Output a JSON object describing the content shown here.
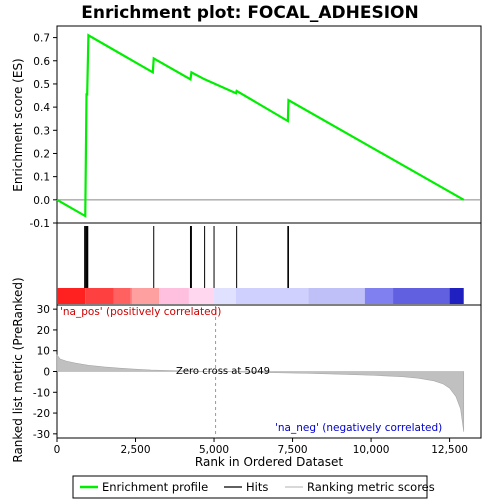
{
  "chart_data": {
    "type": "line",
    "title": "Enrichment plot: FOCAL_ADHESION",
    "xlabel": "Rank in Ordered Dataset",
    "top_panel": {
      "ylabel": "Enrichment score (ES)",
      "ylim": [
        -0.1,
        0.75
      ],
      "yticks": [
        "-0.1",
        "0.0",
        "0.1",
        "0.2",
        "0.3",
        "0.4",
        "0.5",
        "0.6",
        "0.7"
      ],
      "ytick_values": [
        -0.1,
        0.0,
        0.1,
        0.2,
        0.3,
        0.4,
        0.5,
        0.6,
        0.7
      ],
      "series": [
        {
          "name": "Enrichment profile",
          "color": "#00ee00",
          "x": [
            0,
            900,
            920,
            940,
            960,
            1000,
            3050,
            3080,
            4250,
            4280,
            4700,
            5700,
            5720,
            7350,
            7370,
            12950
          ],
          "y": [
            0.0,
            -0.07,
            0.2,
            0.46,
            0.45,
            0.71,
            0.55,
            0.61,
            0.52,
            0.55,
            0.52,
            0.46,
            0.47,
            0.34,
            0.43,
            0.0
          ]
        }
      ]
    },
    "hits": {
      "name": "Hits",
      "x": [
        880,
        910,
        940,
        960,
        980,
        3080,
        4250,
        4280,
        4700,
        5000,
        5720,
        7350,
        7370
      ]
    },
    "bottom_panel": {
      "ylabel": "Ranked list metric (PreRanked)",
      "ylim": [
        -32,
        32
      ],
      "yticks": [
        "30",
        "20",
        "10",
        "0",
        "-10",
        "-20",
        "-30"
      ],
      "ytick_values": [
        30,
        20,
        10,
        0,
        -10,
        -20,
        -30
      ],
      "series_name": "Ranking metric scores",
      "color": "#c0c0c0",
      "x": [
        0,
        100,
        300,
        600,
        1000,
        1500,
        2000,
        2500,
        3000,
        4000,
        5049,
        6000,
        7000,
        8000,
        9000,
        10000,
        11000,
        11500,
        12000,
        12300,
        12500,
        12700,
        12850,
        12950
      ],
      "y": [
        8,
        6,
        5,
        4,
        3,
        2.2,
        1.6,
        1.1,
        0.7,
        0.3,
        0,
        -0.3,
        -0.6,
        -0.9,
        -1.3,
        -1.8,
        -2.5,
        -3.2,
        -4.5,
        -6,
        -8,
        -12,
        -18,
        -29
      ]
    },
    "xlim": [
      0,
      13500
    ],
    "xticks": [
      "0",
      "2,500",
      "5,000",
      "7,500",
      "10,000",
      "12,500"
    ],
    "xtick_values": [
      0,
      2500,
      5000,
      7500,
      10000,
      12500
    ],
    "annotations": {
      "pos_label": "'na_pos' (positively correlated)",
      "neg_label": "'na_neg' (negatively correlated)",
      "zero_cross": "Zero cross at 5049",
      "zero_cross_x": 5049
    },
    "heatmap_colors": [
      "#ff2020",
      "#ff4040",
      "#ff6060",
      "#ff8080",
      "#ffa0a0",
      "#ffc0e0",
      "#ffd8f0",
      "#e0e0ff",
      "#d0d0ff",
      "#c0c0f8",
      "#8080f0",
      "#6060e0",
      "#2020c0"
    ],
    "heatmap_bounds": [
      0,
      900,
      1800,
      2350,
      2400,
      3250,
      4200,
      5000,
      5700,
      8000,
      9800,
      10700,
      12500,
      12950
    ],
    "legend": [
      {
        "label": "Enrichment profile",
        "color": "#00ee00"
      },
      {
        "label": "Hits",
        "color": "#000000"
      },
      {
        "label": "Ranking metric scores",
        "color": "#c0c0c0"
      }
    ]
  }
}
